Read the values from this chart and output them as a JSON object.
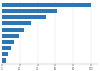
{
  "values": [
    100,
    62,
    50,
    33,
    25,
    19,
    13,
    10,
    7,
    5
  ],
  "bar_color": "#2e75b6",
  "background_color": "#ffffff",
  "xlim": [
    0,
    108
  ],
  "figsize": [
    1.0,
    0.71
  ],
  "dpi": 100,
  "grid_color": "#e0e0e0",
  "spine_color": "#aaaaaa"
}
